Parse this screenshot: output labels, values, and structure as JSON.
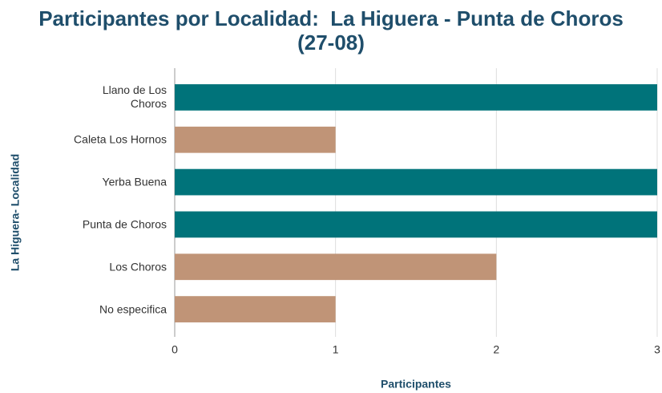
{
  "chart_data": {
    "type": "barh",
    "title": "Participantes por Localidad:  La Higuera - Punta de Choros (27-08)",
    "xlabel": "Participantes",
    "ylabel": "La Higuera- Localidad",
    "categories": [
      "Llano de Los Choros",
      "Caleta Los Hornos",
      "Yerba Buena",
      "Punta de Choros",
      "Los Choros",
      "No especifica"
    ],
    "values": [
      3,
      1,
      3,
      3,
      2,
      1
    ],
    "colors": [
      "#00737a",
      "#c09477",
      "#00737a",
      "#00737a",
      "#c09477",
      "#c09477"
    ],
    "xlim": [
      0,
      3
    ],
    "xticks": [
      0,
      1,
      2,
      3
    ],
    "grid": true
  }
}
